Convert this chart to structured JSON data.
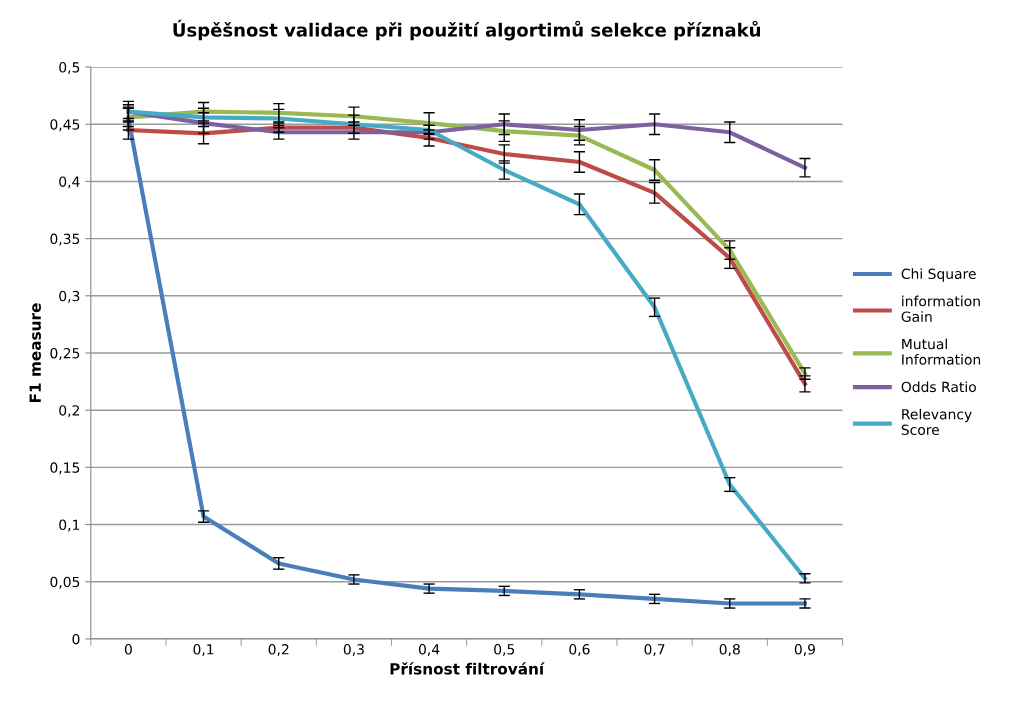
{
  "chart_data": {
    "type": "line",
    "title": "Úspěšnost validace při použití algortimů selekce příznaků",
    "xlabel": "Přísnost filtrování",
    "ylabel": "F1 measure",
    "categories": [
      "0",
      "0,1",
      "0,2",
      "0,3",
      "0,4",
      "0,5",
      "0,6",
      "0,7",
      "0,8",
      "0,9"
    ],
    "series": [
      {
        "name": "Chi Square",
        "color": "#4a7ebb",
        "values": [
          0.455,
          0.107,
          0.066,
          0.052,
          0.044,
          0.042,
          0.039,
          0.035,
          0.031,
          0.031
        ],
        "errors": [
          0.01,
          0.005,
          0.005,
          0.004,
          0.004,
          0.004,
          0.004,
          0.004,
          0.004,
          0.004
        ]
      },
      {
        "name": "information\nGain",
        "color": "#be4b48",
        "values": [
          0.445,
          0.442,
          0.447,
          0.447,
          0.438,
          0.424,
          0.417,
          0.39,
          0.333,
          0.223
        ],
        "errors": [
          0.008,
          0.009,
          0.004,
          0.005,
          0.007,
          0.008,
          0.009,
          0.009,
          0.009,
          0.007
        ]
      },
      {
        "name": "Mutual\nInformation",
        "color": "#98b954",
        "values": [
          0.456,
          0.461,
          0.46,
          0.457,
          0.451,
          0.444,
          0.44,
          0.41,
          0.34,
          0.232
        ],
        "errors": [
          0.008,
          0.008,
          0.008,
          0.008,
          0.009,
          0.009,
          0.008,
          0.009,
          0.008,
          0.005
        ]
      },
      {
        "name": "Odds Ratio",
        "color": "#7d60a0",
        "values": [
          0.461,
          0.451,
          0.443,
          0.443,
          0.443,
          0.45,
          0.445,
          0.45,
          0.443,
          0.412
        ],
        "errors": [
          0.006,
          0.009,
          0.006,
          0.006,
          0.006,
          0.009,
          0.009,
          0.009,
          0.009,
          0.008
        ]
      },
      {
        "name": "Relevancy\nScore",
        "color": "#46aac5",
        "values": [
          0.461,
          0.456,
          0.455,
          0.45,
          0.445,
          0.41,
          0.38,
          0.29,
          0.135,
          0.053
        ],
        "errors": [
          0.009,
          0.008,
          0.008,
          0.008,
          0.004,
          0.008,
          0.009,
          0.008,
          0.006,
          0.004
        ]
      }
    ],
    "ylim": [
      0,
      0.5
    ],
    "yticks": [
      0,
      {
        "value": 0.05,
        "label": "0,05"
      },
      {
        "value": 0.1,
        "label": "0,1"
      },
      {
        "value": 0.15,
        "label": "0,15"
      },
      {
        "value": 0.2,
        "label": "0,2"
      },
      {
        "value": 0.25,
        "label": "0,25"
      },
      {
        "value": 0.3,
        "label": "0,3"
      },
      {
        "value": 0.35,
        "label": "0,35"
      },
      {
        "value": 0.4,
        "label": "0,4"
      },
      {
        "value": 0.45,
        "label": "0,45"
      },
      {
        "value": 0.5,
        "label": "0,5"
      }
    ],
    "grid": "y",
    "legend": "right",
    "marker": "none",
    "line_style": "solid"
  }
}
